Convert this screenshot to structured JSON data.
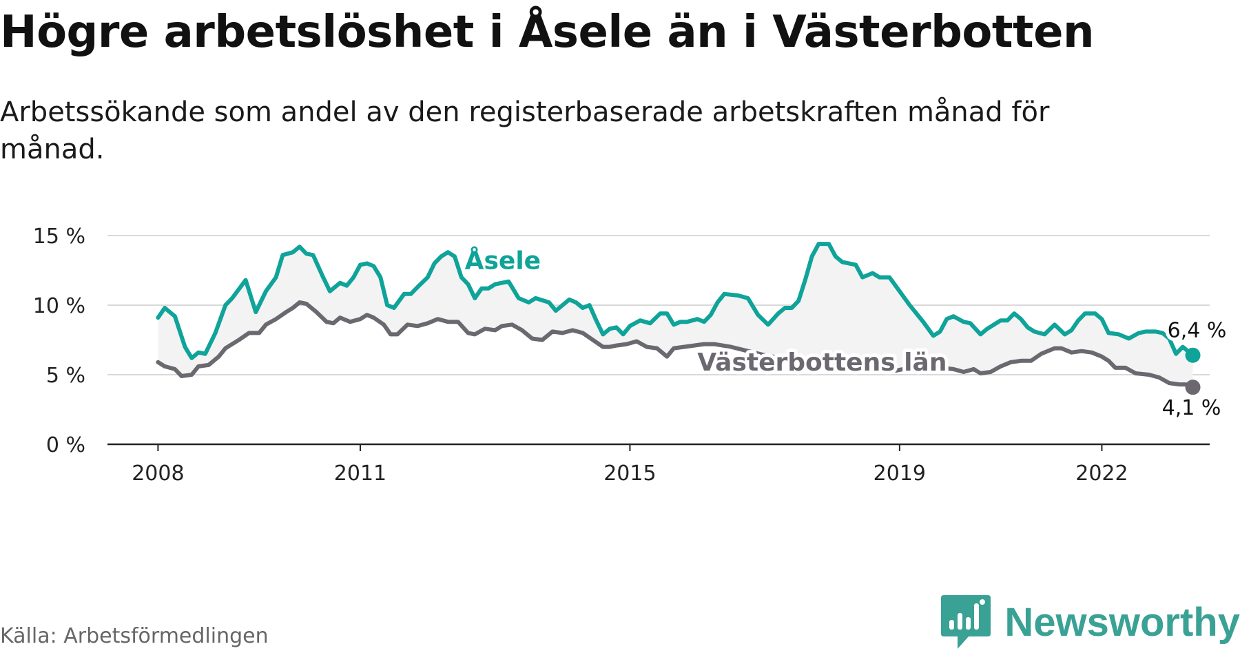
{
  "title": "Högre arbetslöshet i Åsele än i Västerbotten",
  "subtitle": "Arbetssökande som andel av den registerbaserade arbetskraften månad för månad.",
  "source": "Källa: Arbetsförmedlingen",
  "brand": {
    "name": "Newsworthy",
    "icon": "newsworthy-logo-icon"
  },
  "colors": {
    "asele": "#0fa39a",
    "lan": "#6b6870",
    "band": "#f3f3f3",
    "grid": "#d9d9d9"
  },
  "chart_data": {
    "type": "line",
    "title": "Högre arbetslöshet i Åsele än i Västerbotten",
    "xlabel": "",
    "ylabel": "",
    "ylim": [
      0,
      15
    ],
    "yticks": [
      0,
      5,
      10,
      15
    ],
    "ytick_labels": [
      "0 %",
      "5 %",
      "10 %",
      "15 %"
    ],
    "xticks": [
      2008,
      2011,
      2015,
      2019,
      2022
    ],
    "xtick_labels": [
      "2008",
      "2011",
      "2015",
      "2019",
      "2022"
    ],
    "xlim": [
      2007.25,
      2023.6
    ],
    "grid": true,
    "series": [
      {
        "name": "Åsele",
        "label": "Åsele",
        "end_label": "6,4 %",
        "points": [
          [
            2008.0,
            9.1
          ],
          [
            2008.1,
            9.8
          ],
          [
            2008.25,
            9.2
          ],
          [
            2008.4,
            7.0
          ],
          [
            2008.5,
            6.2
          ],
          [
            2008.6,
            6.6
          ],
          [
            2008.7,
            6.5
          ],
          [
            2008.85,
            8.0
          ],
          [
            2009.0,
            10.0
          ],
          [
            2009.1,
            10.5
          ],
          [
            2009.3,
            11.8
          ],
          [
            2009.45,
            9.5
          ],
          [
            2009.6,
            11.0
          ],
          [
            2009.75,
            12.0
          ],
          [
            2009.85,
            13.6
          ],
          [
            2010.0,
            13.8
          ],
          [
            2010.1,
            14.2
          ],
          [
            2010.2,
            13.7
          ],
          [
            2010.3,
            13.6
          ],
          [
            2010.45,
            12.0
          ],
          [
            2010.55,
            11.0
          ],
          [
            2010.7,
            11.6
          ],
          [
            2010.8,
            11.4
          ],
          [
            2010.9,
            12.0
          ],
          [
            2011.0,
            12.9
          ],
          [
            2011.1,
            13.0
          ],
          [
            2011.2,
            12.8
          ],
          [
            2011.3,
            12.0
          ],
          [
            2011.4,
            10.0
          ],
          [
            2011.5,
            9.8
          ],
          [
            2011.65,
            10.8
          ],
          [
            2011.75,
            10.8
          ],
          [
            2011.85,
            11.3
          ],
          [
            2012.0,
            12.0
          ],
          [
            2012.1,
            13.0
          ],
          [
            2012.2,
            13.5
          ],
          [
            2012.3,
            13.8
          ],
          [
            2012.4,
            13.5
          ],
          [
            2012.5,
            12.0
          ],
          [
            2012.6,
            11.5
          ],
          [
            2012.7,
            10.5
          ],
          [
            2012.8,
            11.2
          ],
          [
            2012.9,
            11.2
          ],
          [
            2013.0,
            11.5
          ],
          [
            2013.2,
            11.7
          ],
          [
            2013.35,
            10.5
          ],
          [
            2013.5,
            10.2
          ],
          [
            2013.6,
            10.5
          ],
          [
            2013.8,
            10.2
          ],
          [
            2013.9,
            9.6
          ],
          [
            2014.0,
            10.0
          ],
          [
            2014.1,
            10.4
          ],
          [
            2014.2,
            10.2
          ],
          [
            2014.3,
            9.8
          ],
          [
            2014.4,
            10.0
          ],
          [
            2014.5,
            8.9
          ],
          [
            2014.6,
            7.9
          ],
          [
            2014.7,
            8.3
          ],
          [
            2014.8,
            8.4
          ],
          [
            2014.9,
            7.9
          ],
          [
            2015.0,
            8.5
          ],
          [
            2015.15,
            8.9
          ],
          [
            2015.3,
            8.7
          ],
          [
            2015.45,
            9.4
          ],
          [
            2015.55,
            9.4
          ],
          [
            2015.65,
            8.6
          ],
          [
            2015.75,
            8.8
          ],
          [
            2015.85,
            8.8
          ],
          [
            2016.0,
            9.0
          ],
          [
            2016.1,
            8.8
          ],
          [
            2016.2,
            9.3
          ],
          [
            2016.3,
            10.2
          ],
          [
            2016.4,
            10.8
          ],
          [
            2016.6,
            10.7
          ],
          [
            2016.75,
            10.5
          ],
          [
            2016.9,
            9.3
          ],
          [
            2017.05,
            8.6
          ],
          [
            2017.2,
            9.4
          ],
          [
            2017.3,
            9.8
          ],
          [
            2017.4,
            9.8
          ],
          [
            2017.5,
            10.3
          ],
          [
            2017.6,
            11.8
          ],
          [
            2017.7,
            13.5
          ],
          [
            2017.8,
            14.4
          ],
          [
            2017.95,
            14.4
          ],
          [
            2018.05,
            13.5
          ],
          [
            2018.15,
            13.1
          ],
          [
            2018.35,
            12.9
          ],
          [
            2018.45,
            12.0
          ],
          [
            2018.6,
            12.3
          ],
          [
            2018.7,
            12.0
          ],
          [
            2018.85,
            12.0
          ],
          [
            2019.0,
            11.0
          ],
          [
            2019.15,
            10.0
          ],
          [
            2019.35,
            8.8
          ],
          [
            2019.5,
            7.8
          ],
          [
            2019.6,
            8.1
          ],
          [
            2019.7,
            9.0
          ],
          [
            2019.8,
            9.2
          ],
          [
            2019.95,
            8.8
          ],
          [
            2020.05,
            8.7
          ],
          [
            2020.2,
            7.9
          ],
          [
            2020.3,
            8.3
          ],
          [
            2020.5,
            8.9
          ],
          [
            2020.6,
            8.9
          ],
          [
            2020.7,
            9.4
          ],
          [
            2020.8,
            9.0
          ],
          [
            2020.9,
            8.4
          ],
          [
            2021.0,
            8.1
          ],
          [
            2021.15,
            7.9
          ],
          [
            2021.3,
            8.6
          ],
          [
            2021.45,
            7.9
          ],
          [
            2021.55,
            8.2
          ],
          [
            2021.65,
            8.9
          ],
          [
            2021.75,
            9.4
          ],
          [
            2021.9,
            9.4
          ],
          [
            2022.0,
            9.0
          ],
          [
            2022.1,
            8.0
          ],
          [
            2022.25,
            7.9
          ],
          [
            2022.4,
            7.6
          ],
          [
            2022.55,
            8.0
          ],
          [
            2022.65,
            8.1
          ],
          [
            2022.8,
            8.1
          ],
          [
            2022.9,
            8.0
          ],
          [
            2023.0,
            7.6
          ],
          [
            2023.1,
            6.5
          ],
          [
            2023.2,
            7.0
          ],
          [
            2023.35,
            6.4
          ]
        ]
      },
      {
        "name": "Västerbottens län",
        "label": "Västerbottens län",
        "end_label": "4,1 %",
        "points": [
          [
            2008.0,
            5.9
          ],
          [
            2008.1,
            5.6
          ],
          [
            2008.25,
            5.4
          ],
          [
            2008.35,
            4.9
          ],
          [
            2008.5,
            5.0
          ],
          [
            2008.6,
            5.6
          ],
          [
            2008.75,
            5.7
          ],
          [
            2008.9,
            6.3
          ],
          [
            2009.0,
            6.9
          ],
          [
            2009.2,
            7.5
          ],
          [
            2009.35,
            8.0
          ],
          [
            2009.5,
            8.0
          ],
          [
            2009.6,
            8.6
          ],
          [
            2009.75,
            9.0
          ],
          [
            2009.9,
            9.5
          ],
          [
            2010.0,
            9.8
          ],
          [
            2010.1,
            10.2
          ],
          [
            2010.2,
            10.1
          ],
          [
            2010.35,
            9.5
          ],
          [
            2010.5,
            8.8
          ],
          [
            2010.6,
            8.7
          ],
          [
            2010.7,
            9.1
          ],
          [
            2010.85,
            8.8
          ],
          [
            2011.0,
            9.0
          ],
          [
            2011.1,
            9.3
          ],
          [
            2011.2,
            9.1
          ],
          [
            2011.35,
            8.6
          ],
          [
            2011.45,
            7.9
          ],
          [
            2011.55,
            7.9
          ],
          [
            2011.7,
            8.6
          ],
          [
            2011.85,
            8.5
          ],
          [
            2012.0,
            8.7
          ],
          [
            2012.15,
            9.0
          ],
          [
            2012.3,
            8.8
          ],
          [
            2012.45,
            8.8
          ],
          [
            2012.6,
            8.0
          ],
          [
            2012.7,
            7.9
          ],
          [
            2012.85,
            8.3
          ],
          [
            2013.0,
            8.2
          ],
          [
            2013.1,
            8.5
          ],
          [
            2013.25,
            8.6
          ],
          [
            2013.4,
            8.2
          ],
          [
            2013.55,
            7.6
          ],
          [
            2013.7,
            7.5
          ],
          [
            2013.85,
            8.1
          ],
          [
            2014.0,
            8.0
          ],
          [
            2014.15,
            8.2
          ],
          [
            2014.3,
            8.0
          ],
          [
            2014.45,
            7.5
          ],
          [
            2014.6,
            7.0
          ],
          [
            2014.7,
            7.0
          ],
          [
            2014.8,
            7.1
          ],
          [
            2014.95,
            7.2
          ],
          [
            2015.1,
            7.4
          ],
          [
            2015.25,
            7.0
          ],
          [
            2015.4,
            6.9
          ],
          [
            2015.55,
            6.3
          ],
          [
            2015.65,
            6.9
          ],
          [
            2015.8,
            7.0
          ],
          [
            2015.95,
            7.1
          ],
          [
            2016.1,
            7.2
          ],
          [
            2016.25,
            7.2
          ],
          [
            2016.5,
            7.0
          ],
          [
            2016.75,
            6.7
          ],
          [
            2017.0,
            6.4
          ],
          [
            2017.25,
            6.2
          ],
          [
            2017.5,
            5.9
          ],
          [
            2017.75,
            5.8
          ],
          [
            2018.0,
            5.8
          ],
          [
            2018.25,
            5.7
          ],
          [
            2018.5,
            5.6
          ],
          [
            2018.75,
            5.4
          ],
          [
            2018.95,
            5.3
          ],
          [
            2019.15,
            5.5
          ],
          [
            2019.35,
            5.5
          ],
          [
            2019.6,
            5.5
          ],
          [
            2019.8,
            5.4
          ],
          [
            2019.95,
            5.2
          ],
          [
            2020.1,
            5.4
          ],
          [
            2020.2,
            5.1
          ],
          [
            2020.35,
            5.2
          ],
          [
            2020.5,
            5.6
          ],
          [
            2020.65,
            5.9
          ],
          [
            2020.8,
            6.0
          ],
          [
            2020.95,
            6.0
          ],
          [
            2021.1,
            6.5
          ],
          [
            2021.3,
            6.9
          ],
          [
            2021.4,
            6.9
          ],
          [
            2021.55,
            6.6
          ],
          [
            2021.7,
            6.7
          ],
          [
            2021.85,
            6.6
          ],
          [
            2022.0,
            6.3
          ],
          [
            2022.1,
            6.0
          ],
          [
            2022.2,
            5.5
          ],
          [
            2022.35,
            5.5
          ],
          [
            2022.5,
            5.1
          ],
          [
            2022.7,
            5.0
          ],
          [
            2022.85,
            4.8
          ],
          [
            2023.0,
            4.4
          ],
          [
            2023.15,
            4.3
          ],
          [
            2023.25,
            4.3
          ],
          [
            2023.35,
            4.1
          ]
        ]
      }
    ]
  }
}
